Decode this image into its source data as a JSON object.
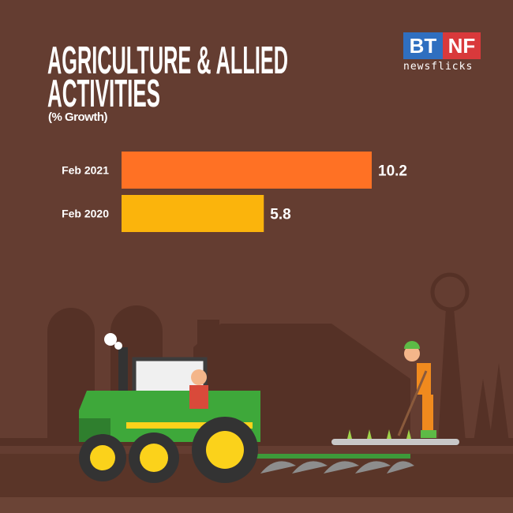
{
  "chart_data": {
    "type": "bar",
    "orientation": "horizontal",
    "title": "AGRICULTURE & ALLIED ACTIVITIES",
    "subtitle": "(% Growth)",
    "categories": [
      "Feb 2021",
      "Feb 2020"
    ],
    "values": [
      10.2,
      5.8
    ],
    "value_labels": [
      "10.2",
      "5.8"
    ],
    "colors": [
      "#ff7124",
      "#fbb40c"
    ],
    "xlim": [
      0,
      10.2
    ],
    "grid": false
  },
  "logo": {
    "left": "BT",
    "right": "NF",
    "tagline": "newsflicks"
  },
  "colors": {
    "background": "#643d31",
    "silhouette": "#553126"
  }
}
